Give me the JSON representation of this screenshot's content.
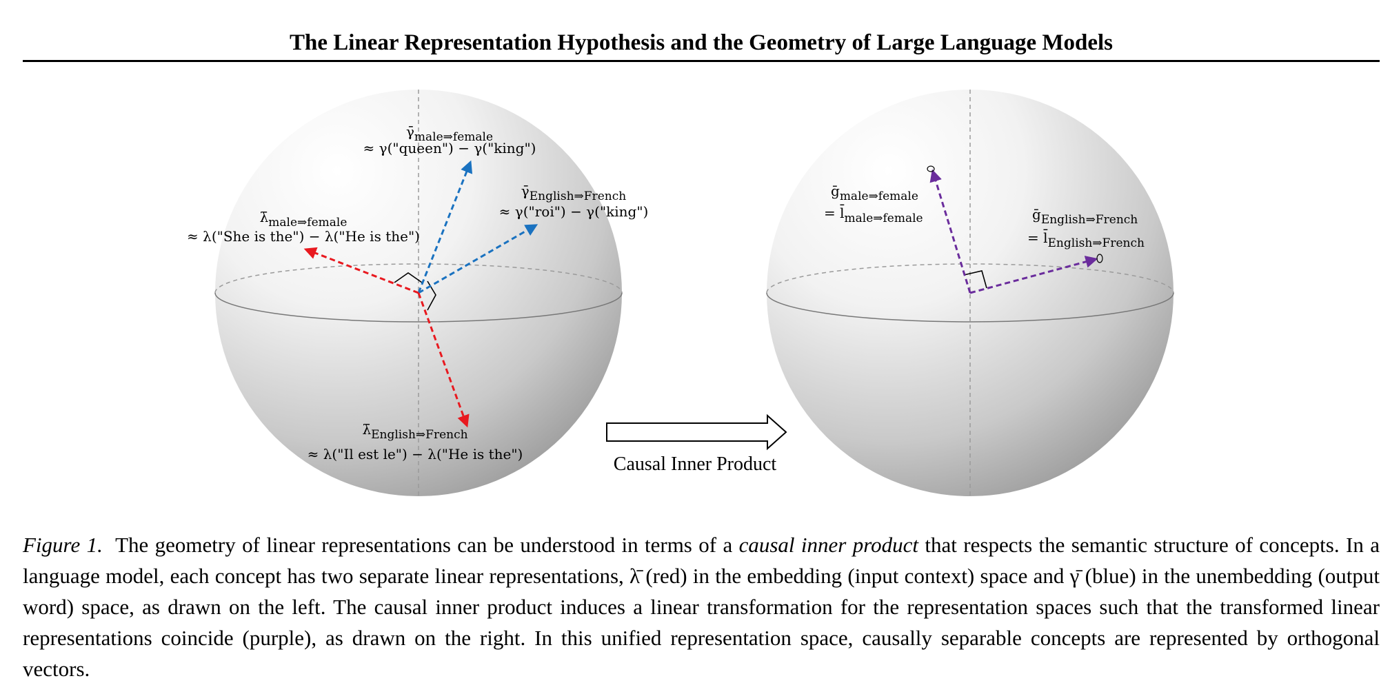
{
  "header": {
    "title": "The Linear Representation Hypothesis and the Geometry of Large Language Models"
  },
  "figure": {
    "left_sphere": {
      "gamma_gender": {
        "symbol": "γ̄",
        "subscript": "male⇒female",
        "approx": "≈ γ(\"queen\") − γ(\"king\")"
      },
      "gamma_language": {
        "symbol": "γ̄",
        "subscript": "English⇒French",
        "approx": "≈ γ(\"roi\") − γ(\"king\")"
      },
      "lambda_gender": {
        "symbol": "λ̄",
        "subscript": "male⇒female",
        "approx": "≈ λ(\"She is the\") − λ(\"He is the\")"
      },
      "lambda_language": {
        "symbol": "λ̄",
        "subscript": "English⇒French",
        "approx": "≈ λ(\"Il est le\") − λ(\"He is the\")"
      }
    },
    "transform_label": "Causal Inner Product",
    "right_sphere": {
      "gender": {
        "symbol": "ḡ",
        "subscript": "male⇒female",
        "eq_symbol": "= l̄",
        "eq_subscript": "male⇒female"
      },
      "language": {
        "symbol": "ḡ",
        "subscript": "English⇒French",
        "eq_symbol": "= l̄",
        "eq_subscript": "English⇒French"
      }
    },
    "colors": {
      "red": "#e8191f",
      "blue": "#1a72c0",
      "purple": "#6a2c9c"
    }
  },
  "caption": {
    "label": "Figure 1.",
    "part1": "The geometry of linear representations can be understood in terms of a ",
    "emphasis": "causal inner product",
    "part2": " that respects the semantic structure of concepts. In a language model, each concept has two separate linear representations, λ̄ (red) in the embedding (input context) space and γ̄ (blue) in the unembedding (output word) space, as drawn on the left. The causal inner product induces a linear transformation for the representation spaces such that the transformed linear representations coincide (purple), as drawn on the right. In this unified representation space, causally separable concepts are represented by orthogonal vectors."
  }
}
